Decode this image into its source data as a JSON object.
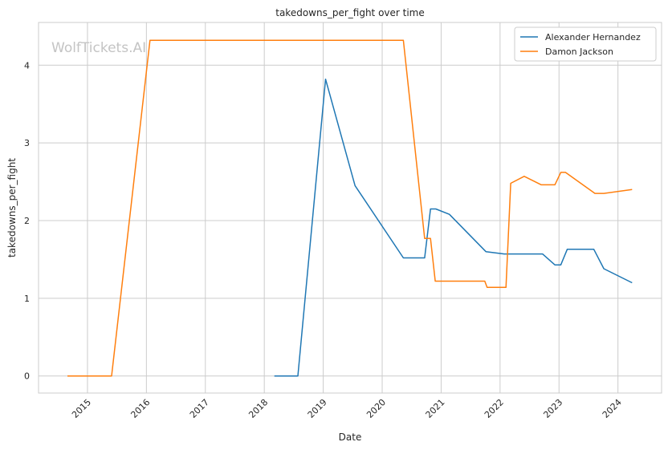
{
  "chart_data": {
    "type": "line",
    "title": "takedowns_per_fight over time",
    "xlabel": "Date",
    "ylabel": "takedowns_per_fight",
    "watermark": "WolfTickets.AI",
    "xlim": [
      2014.17,
      2024.74
    ],
    "ylim": [
      -0.22,
      4.55
    ],
    "x_ticks": [
      {
        "label": "2015",
        "value": 2015.0
      },
      {
        "label": "2016",
        "value": 2016.0
      },
      {
        "label": "2017",
        "value": 2017.0
      },
      {
        "label": "2018",
        "value": 2018.0
      },
      {
        "label": "2019",
        "value": 2019.0
      },
      {
        "label": "2020",
        "value": 2020.0
      },
      {
        "label": "2021",
        "value": 2021.0
      },
      {
        "label": "2022",
        "value": 2022.0
      },
      {
        "label": "2023",
        "value": 2023.0
      },
      {
        "label": "2024",
        "value": 2024.0
      }
    ],
    "y_ticks": [
      {
        "label": "0",
        "value": 0
      },
      {
        "label": "1",
        "value": 1
      },
      {
        "label": "2",
        "value": 2
      },
      {
        "label": "3",
        "value": 3
      },
      {
        "label": "4",
        "value": 4
      }
    ],
    "grid": true,
    "legend_position": "top-right",
    "series": [
      {
        "name": "Alexander Hernandez",
        "color": "#1f77b4",
        "points": [
          [
            2018.17,
            0.0
          ],
          [
            2018.57,
            0.0
          ],
          [
            2019.04,
            3.82
          ],
          [
            2019.54,
            2.45
          ],
          [
            2020.36,
            1.52
          ],
          [
            2020.72,
            1.52
          ],
          [
            2020.82,
            2.15
          ],
          [
            2020.91,
            2.15
          ],
          [
            2021.14,
            2.08
          ],
          [
            2021.76,
            1.6
          ],
          [
            2022.07,
            1.57
          ],
          [
            2022.72,
            1.57
          ],
          [
            2022.93,
            1.43
          ],
          [
            2023.03,
            1.43
          ],
          [
            2023.14,
            1.63
          ],
          [
            2023.59,
            1.63
          ],
          [
            2023.76,
            1.38
          ],
          [
            2024.24,
            1.2
          ]
        ]
      },
      {
        "name": "Damon Jackson",
        "color": "#ff7f0e",
        "points": [
          [
            2014.66,
            0.0
          ],
          [
            2015.41,
            0.0
          ],
          [
            2016.06,
            4.32
          ],
          [
            2020.36,
            4.32
          ],
          [
            2020.72,
            1.77
          ],
          [
            2020.82,
            1.77
          ],
          [
            2020.9,
            1.22
          ],
          [
            2021.74,
            1.22
          ],
          [
            2021.78,
            1.14
          ],
          [
            2022.1,
            1.14
          ],
          [
            2022.18,
            2.48
          ],
          [
            2022.41,
            2.57
          ],
          [
            2022.7,
            2.46
          ],
          [
            2022.93,
            2.46
          ],
          [
            2023.03,
            2.62
          ],
          [
            2023.11,
            2.62
          ],
          [
            2023.61,
            2.35
          ],
          [
            2023.76,
            2.35
          ],
          [
            2024.24,
            2.4
          ]
        ]
      }
    ]
  }
}
